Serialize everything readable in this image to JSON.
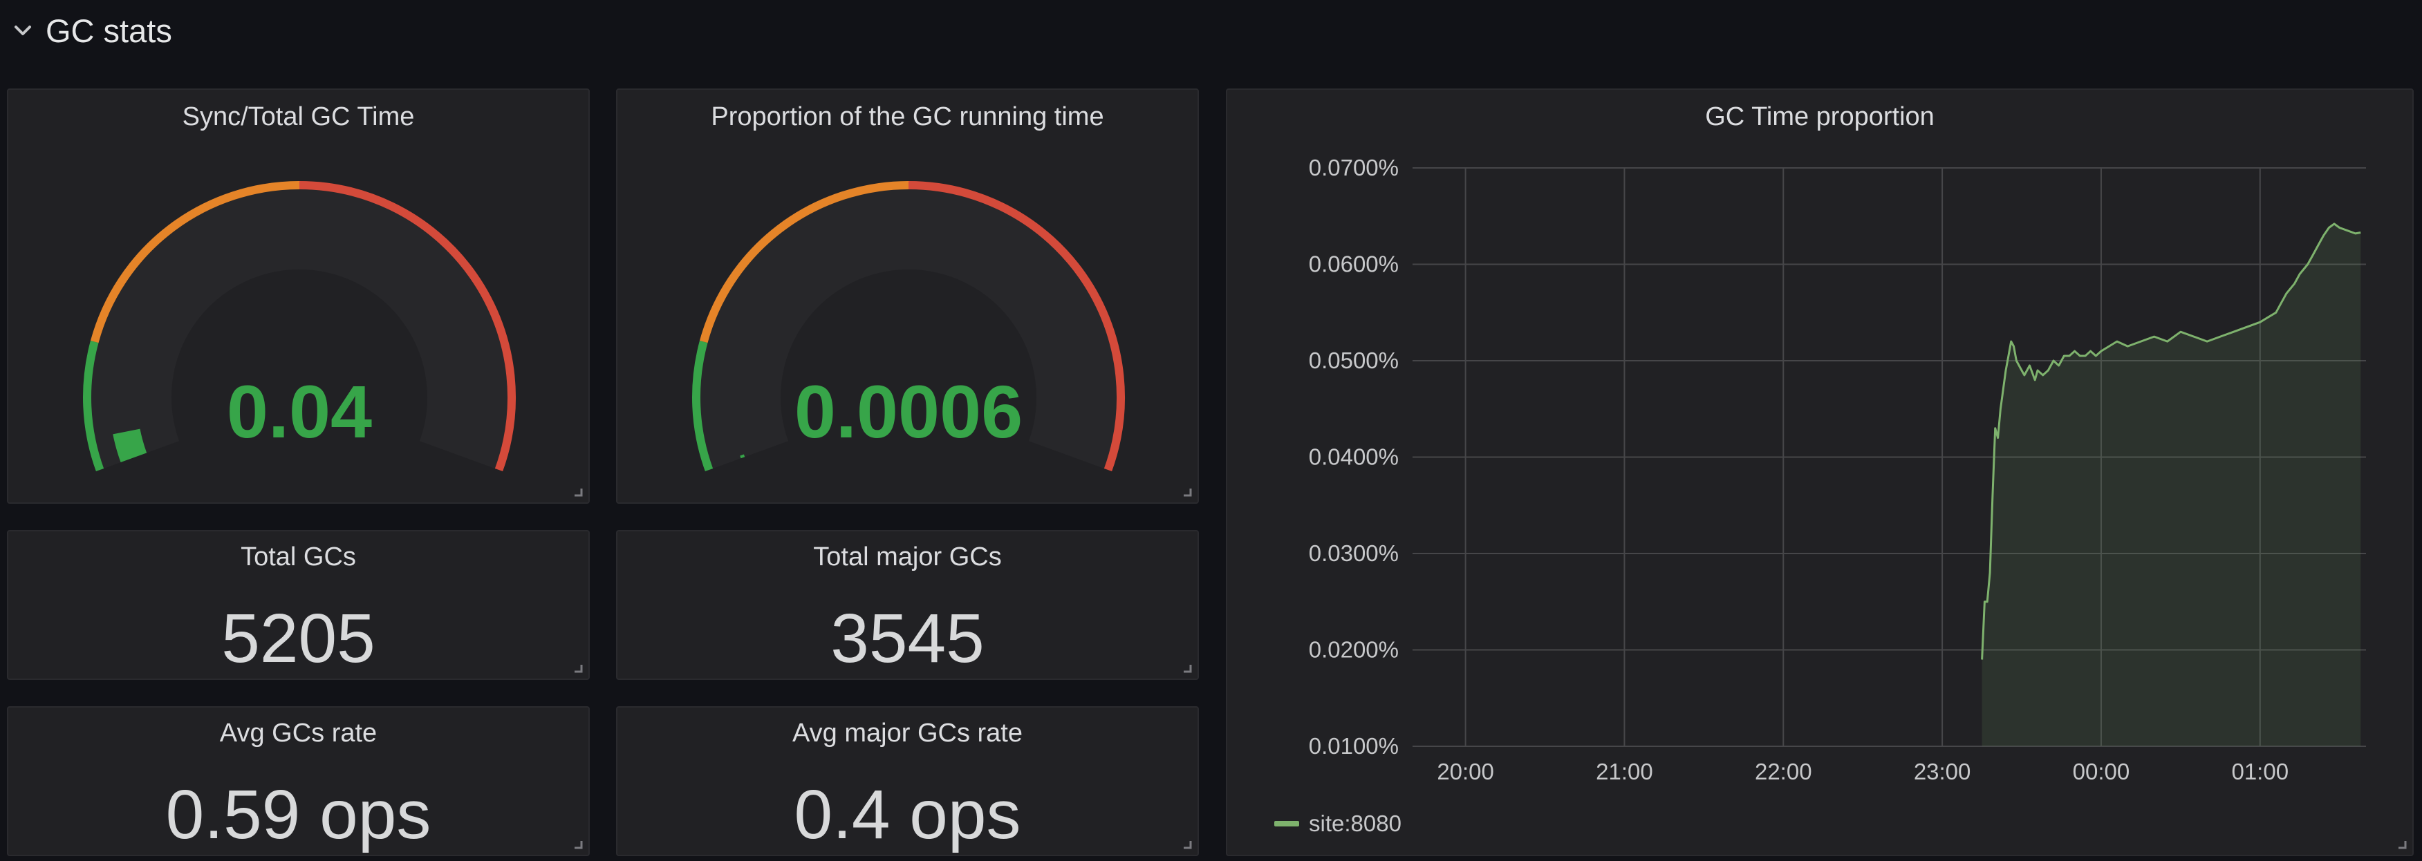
{
  "row": {
    "title": "GC stats"
  },
  "colors": {
    "green": "#37a549",
    "orange": "#e58428",
    "red": "#d44a3a",
    "series": "#7eb26d"
  },
  "gauges": [
    {
      "title": "Sync/Total GC Time",
      "value": 0.04,
      "display": "0.04",
      "thresholds": [
        0.16,
        0.5
      ]
    },
    {
      "title": "Proportion of the GC running time",
      "value": 0.0006,
      "display": "0.0006",
      "thresholds": [
        0.16,
        0.5
      ]
    }
  ],
  "stats": {
    "total_gcs": {
      "title": "Total GCs",
      "value": "5205"
    },
    "total_major_gcs": {
      "title": "Total major GCs",
      "value": "3545"
    },
    "avg_gcs_rate": {
      "title": "Avg GCs rate",
      "value": "0.59 ops"
    },
    "avg_major_gcs_rate": {
      "title": "Avg major GCs rate",
      "value": "0.4 ops"
    }
  },
  "chart_data": {
    "type": "area",
    "title": "GC Time proportion",
    "xlabel": "",
    "ylabel": "",
    "x_ticks": [
      "20:00",
      "21:00",
      "22:00",
      "23:00",
      "00:00",
      "01:00"
    ],
    "y_ticks": [
      "0.0100%",
      "0.0200%",
      "0.0300%",
      "0.0400%",
      "0.0500%",
      "0.0600%",
      "0.0700%"
    ],
    "xlim": [
      "19:40",
      "01:40"
    ],
    "ylim": [
      0.01,
      0.07
    ],
    "grid": true,
    "legend_position": "bottom-left",
    "series": [
      {
        "name": "site:8080",
        "x": [
          "23:15",
          "23:16",
          "23:17",
          "23:18",
          "23:19",
          "23:20",
          "23:21",
          "23:22",
          "23:23",
          "23:24",
          "23:25",
          "23:26",
          "23:27",
          "23:28",
          "23:30",
          "23:31",
          "23:33",
          "23:35",
          "23:36",
          "23:38",
          "23:40",
          "23:42",
          "23:44",
          "23:46",
          "23:48",
          "23:50",
          "23:52",
          "23:54",
          "23:56",
          "23:58",
          "00:00",
          "00:03",
          "00:06",
          "00:10",
          "00:15",
          "00:20",
          "00:25",
          "00:30",
          "00:35",
          "00:40",
          "00:45",
          "00:50",
          "00:55",
          "01:00",
          "01:03",
          "01:06",
          "01:08",
          "01:10",
          "01:13",
          "01:15",
          "01:18",
          "01:20",
          "01:22",
          "01:24",
          "01:26",
          "01:28",
          "01:30",
          "01:33",
          "01:36",
          "01:38"
        ],
        "values": [
          0.019,
          0.025,
          0.025,
          0.028,
          0.036,
          0.043,
          0.042,
          0.045,
          0.047,
          0.049,
          0.0505,
          0.052,
          0.0515,
          0.05,
          0.049,
          0.0485,
          0.0495,
          0.048,
          0.049,
          0.0485,
          0.049,
          0.05,
          0.0495,
          0.0505,
          0.0505,
          0.051,
          0.0505,
          0.0505,
          0.051,
          0.0505,
          0.051,
          0.0515,
          0.052,
          0.0515,
          0.052,
          0.0525,
          0.052,
          0.053,
          0.0525,
          0.052,
          0.0525,
          0.053,
          0.0535,
          0.054,
          0.0545,
          0.055,
          0.056,
          0.057,
          0.058,
          0.059,
          0.06,
          0.061,
          0.062,
          0.063,
          0.0638,
          0.0642,
          0.0638,
          0.0635,
          0.0632,
          0.0633
        ]
      }
    ]
  },
  "legend": {
    "label": "site:8080"
  }
}
